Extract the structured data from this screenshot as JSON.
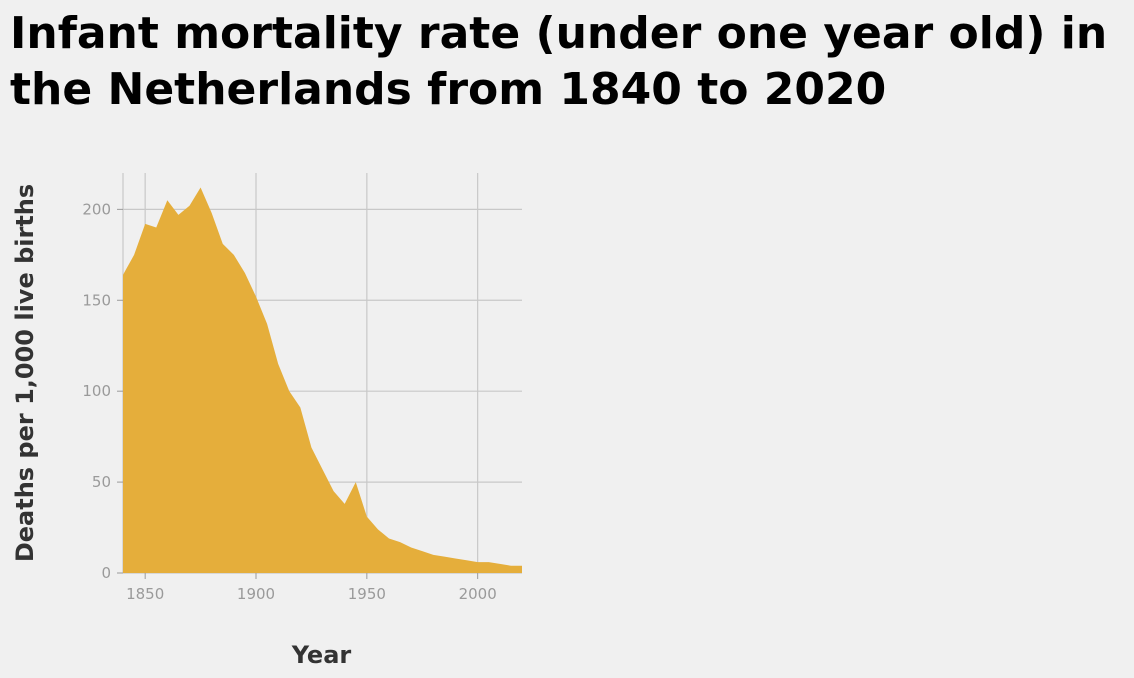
{
  "chart_data": {
    "type": "area",
    "title": "Infant mortality rate (under one year old) in the Netherlands from 1840 to 2020",
    "xlabel": "Year",
    "ylabel": "Deaths per 1,000 live births",
    "xlim": [
      1840,
      2020
    ],
    "ylim": [
      0,
      220
    ],
    "xticks": [
      1850,
      1900,
      1950,
      2000
    ],
    "yticks": [
      0,
      50,
      100,
      150,
      200
    ],
    "grid": true,
    "legend": "none",
    "color": "#e5ae3b",
    "x": [
      1840,
      1845,
      1850,
      1855,
      1860,
      1865,
      1870,
      1875,
      1880,
      1885,
      1890,
      1895,
      1900,
      1905,
      1910,
      1915,
      1920,
      1925,
      1930,
      1935,
      1940,
      1945,
      1950,
      1955,
      1960,
      1965,
      1970,
      1975,
      1980,
      1985,
      1990,
      1995,
      2000,
      2005,
      2010,
      2015,
      2020
    ],
    "y": [
      164,
      175,
      192,
      190,
      205,
      197,
      202,
      212,
      198,
      181,
      175,
      165,
      152,
      137,
      115,
      100,
      91,
      69,
      57,
      45,
      38,
      50,
      31,
      24,
      19,
      17,
      14,
      12,
      10,
      9,
      8,
      7,
      6,
      6,
      5,
      4,
      4
    ]
  }
}
